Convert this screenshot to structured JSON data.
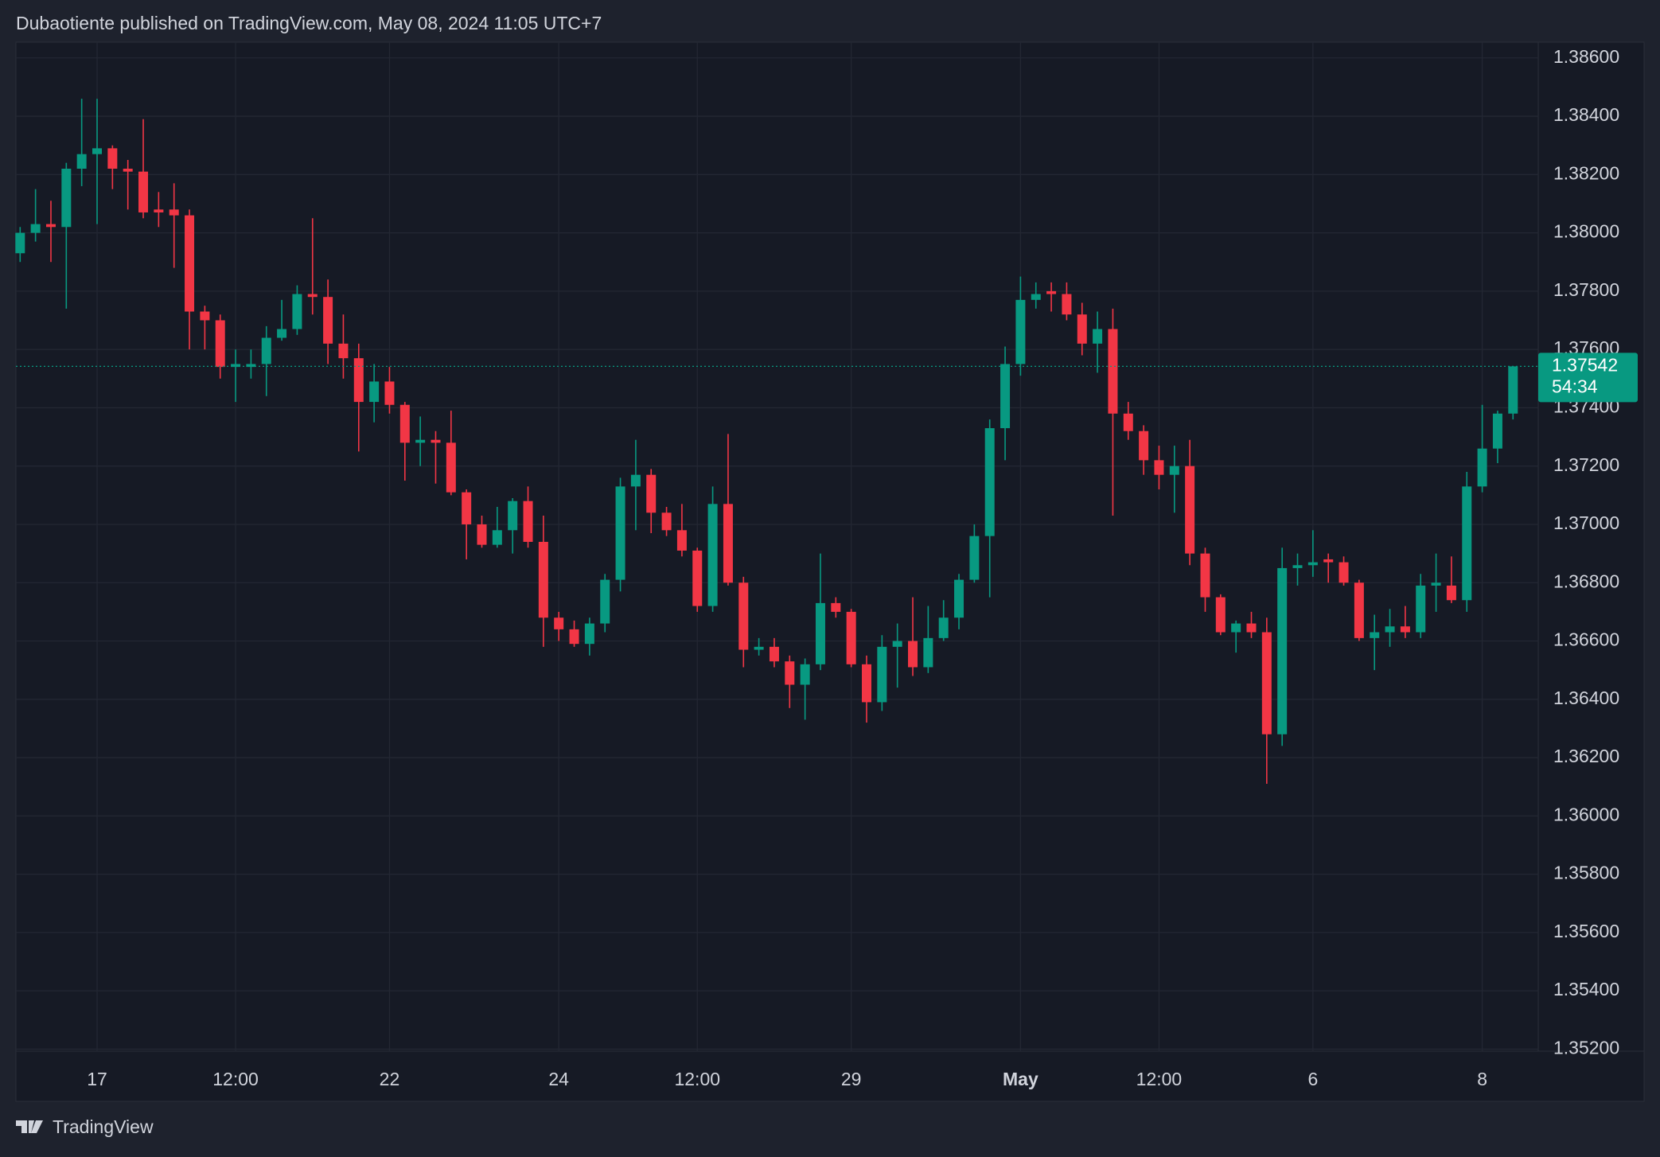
{
  "header": {
    "text": "Dubaotiente published on TradingView.com, May 08, 2024 11:05 UTC+7"
  },
  "footer": {
    "brand": "TradingView"
  },
  "chart_data": {
    "type": "candlestick",
    "up_color": "#089981",
    "down_color": "#f23645",
    "categories": [
      null,
      null,
      null,
      null,
      null,
      "17",
      null,
      null,
      null,
      null,
      null,
      null,
      null,
      null,
      "12:00",
      null,
      null,
      null,
      null,
      null,
      null,
      null,
      null,
      null,
      "22",
      null,
      null,
      null,
      null,
      null,
      null,
      null,
      null,
      null,
      null,
      "24",
      null,
      null,
      null,
      null,
      null,
      null,
      null,
      null,
      "12:00",
      null,
      null,
      null,
      null,
      null,
      null,
      null,
      null,
      null,
      "29",
      null,
      null,
      null,
      null,
      null,
      null,
      null,
      null,
      null,
      null,
      "May",
      null,
      null,
      null,
      null,
      null,
      null,
      null,
      null,
      "12:00",
      null,
      null,
      null,
      null,
      null,
      null,
      null,
      null,
      null,
      "6",
      null,
      null,
      null,
      null,
      null,
      null,
      null,
      null,
      null,
      null,
      "8",
      null,
      null
    ],
    "open": [
      1.3793,
      1.38,
      1.3803,
      1.3802,
      1.3822,
      1.3827,
      1.3829,
      1.3822,
      1.3821,
      1.3808,
      1.3808,
      1.3806,
      1.3773,
      1.377,
      1.3754,
      1.3754,
      1.3755,
      1.3764,
      1.3767,
      1.3779,
      1.3778,
      1.3762,
      1.3757,
      1.3742,
      1.3749,
      1.3741,
      1.3728,
      1.3729,
      1.3728,
      1.3711,
      1.37,
      1.3693,
      1.3698,
      1.3708,
      1.3694,
      1.3668,
      1.3664,
      1.3659,
      1.3666,
      1.3681,
      1.3713,
      1.3717,
      1.3704,
      1.3698,
      1.3691,
      1.3672,
      1.3707,
      1.368,
      1.3657,
      1.3658,
      1.3653,
      1.3645,
      1.3652,
      1.3673,
      1.367,
      1.3652,
      1.3639,
      1.3658,
      1.366,
      1.3651,
      1.3661,
      1.3668,
      1.3681,
      1.3696,
      1.3733,
      1.3755,
      1.3777,
      1.378,
      1.3779,
      1.3772,
      1.3762,
      1.3767,
      1.3738,
      1.3732,
      1.3722,
      1.3717,
      1.372,
      1.369,
      1.3675,
      1.3663,
      1.3666,
      1.3663,
      1.3628,
      1.3685,
      1.3686,
      1.3688,
      1.3687,
      1.368,
      1.3661,
      1.3663,
      1.3665,
      1.3663,
      1.3679,
      1.3679,
      1.3674,
      1.3713,
      1.3726,
      1.3738
    ],
    "high": [
      1.3802,
      1.3815,
      1.3811,
      1.3824,
      1.3846,
      1.3846,
      1.383,
      1.3825,
      1.3839,
      1.3814,
      1.3817,
      1.3808,
      1.3775,
      1.3772,
      1.376,
      1.376,
      1.3768,
      1.3777,
      1.3782,
      1.3805,
      1.3784,
      1.3772,
      1.3762,
      1.3755,
      1.3754,
      1.3742,
      1.3737,
      1.3732,
      1.3739,
      1.3712,
      1.3703,
      1.3706,
      1.3709,
      1.3713,
      1.3703,
      1.367,
      1.3667,
      1.3668,
      1.3683,
      1.3716,
      1.3729,
      1.3719,
      1.3706,
      1.3707,
      1.3692,
      1.3713,
      1.3731,
      1.3682,
      1.3661,
      1.3661,
      1.3655,
      1.3654,
      1.369,
      1.3675,
      1.3671,
      1.3655,
      1.3662,
      1.3666,
      1.3675,
      1.3672,
      1.3674,
      1.3683,
      1.37,
      1.3736,
      1.3761,
      1.3785,
      1.3783,
      1.3783,
      1.3783,
      1.3776,
      1.3773,
      1.3774,
      1.3742,
      1.3734,
      1.3727,
      1.3727,
      1.3729,
      1.3692,
      1.3676,
      1.3667,
      1.367,
      1.3668,
      1.3692,
      1.369,
      1.3698,
      1.369,
      1.3689,
      1.3681,
      1.3669,
      1.3671,
      1.3672,
      1.3683,
      1.369,
      1.3689,
      1.3718,
      1.3741,
      1.3739,
      1.37542
    ],
    "low": [
      1.379,
      1.3797,
      1.379,
      1.3774,
      1.3816,
      1.3803,
      1.3815,
      1.3808,
      1.3805,
      1.3802,
      1.3788,
      1.376,
      1.376,
      1.375,
      1.3742,
      1.375,
      1.3744,
      1.3763,
      1.3765,
      1.3772,
      1.3755,
      1.375,
      1.3725,
      1.3735,
      1.3738,
      1.3715,
      1.372,
      1.3714,
      1.371,
      1.3688,
      1.3692,
      1.3692,
      1.369,
      1.3692,
      1.3658,
      1.366,
      1.3658,
      1.3655,
      1.3663,
      1.3677,
      1.3698,
      1.3697,
      1.3696,
      1.3689,
      1.367,
      1.367,
      1.3679,
      1.3651,
      1.3655,
      1.3651,
      1.3637,
      1.3633,
      1.365,
      1.3668,
      1.3651,
      1.3632,
      1.3636,
      1.3644,
      1.3648,
      1.3649,
      1.366,
      1.3664,
      1.368,
      1.3675,
      1.3722,
      1.3751,
      1.3774,
      1.3773,
      1.377,
      1.3758,
      1.3752,
      1.3703,
      1.3729,
      1.3717,
      1.3712,
      1.3704,
      1.3686,
      1.367,
      1.3662,
      1.3656,
      1.3661,
      1.3611,
      1.3624,
      1.3679,
      1.3682,
      1.368,
      1.3679,
      1.366,
      1.365,
      1.3658,
      1.3661,
      1.3661,
      1.367,
      1.3673,
      1.367,
      1.3711,
      1.3721,
      1.3736
    ],
    "close": [
      1.38,
      1.3803,
      1.3802,
      1.3822,
      1.3827,
      1.3829,
      1.3822,
      1.3821,
      1.3807,
      1.3807,
      1.3806,
      1.3773,
      1.377,
      1.3754,
      1.3755,
      1.3755,
      1.3764,
      1.3767,
      1.3779,
      1.3778,
      1.3762,
      1.3757,
      1.3742,
      1.3749,
      1.3741,
      1.3728,
      1.3729,
      1.3728,
      1.3711,
      1.37,
      1.3693,
      1.3698,
      1.3708,
      1.3694,
      1.3668,
      1.3664,
      1.3659,
      1.3666,
      1.3681,
      1.3713,
      1.3717,
      1.3704,
      1.3698,
      1.3691,
      1.3672,
      1.3707,
      1.368,
      1.3657,
      1.3658,
      1.3653,
      1.3645,
      1.3652,
      1.3673,
      1.367,
      1.3652,
      1.3639,
      1.3658,
      1.366,
      1.3651,
      1.3661,
      1.3668,
      1.3681,
      1.3696,
      1.3733,
      1.3755,
      1.3777,
      1.3779,
      1.3779,
      1.3772,
      1.3762,
      1.3767,
      1.3738,
      1.3732,
      1.3722,
      1.3717,
      1.372,
      1.369,
      1.3675,
      1.3663,
      1.3666,
      1.3663,
      1.3628,
      1.3685,
      1.3686,
      1.3687,
      1.3687,
      1.368,
      1.3661,
      1.3663,
      1.3665,
      1.3663,
      1.3679,
      1.368,
      1.3674,
      1.3713,
      1.3726,
      1.3738,
      1.37542
    ],
    "ylim": [
      1.35193,
      1.38654
    ],
    "yticks": [
      {
        "value": 1.352,
        "label": "1.35200"
      },
      {
        "value": 1.354,
        "label": "1.35400"
      },
      {
        "value": 1.356,
        "label": "1.35600"
      },
      {
        "value": 1.358,
        "label": "1.35800"
      },
      {
        "value": 1.36,
        "label": "1.36000"
      },
      {
        "value": 1.362,
        "label": "1.36200"
      },
      {
        "value": 1.364,
        "label": "1.36400"
      },
      {
        "value": 1.366,
        "label": "1.36600"
      },
      {
        "value": 1.368,
        "label": "1.36800"
      },
      {
        "value": 1.37,
        "label": "1.37000"
      },
      {
        "value": 1.372,
        "label": "1.37200"
      },
      {
        "value": 1.374,
        "label": "1.37400"
      },
      {
        "value": 1.376,
        "label": "1.37600"
      },
      {
        "value": 1.378,
        "label": "1.37800"
      },
      {
        "value": 1.38,
        "label": "1.38000"
      },
      {
        "value": 1.382,
        "label": "1.38200"
      },
      {
        "value": 1.384,
        "label": "1.38400"
      },
      {
        "value": 1.386,
        "label": "1.38600"
      }
    ],
    "grid": true,
    "last_price": {
      "value": 1.37542,
      "label": "1.37542"
    },
    "countdown": "54:34"
  }
}
